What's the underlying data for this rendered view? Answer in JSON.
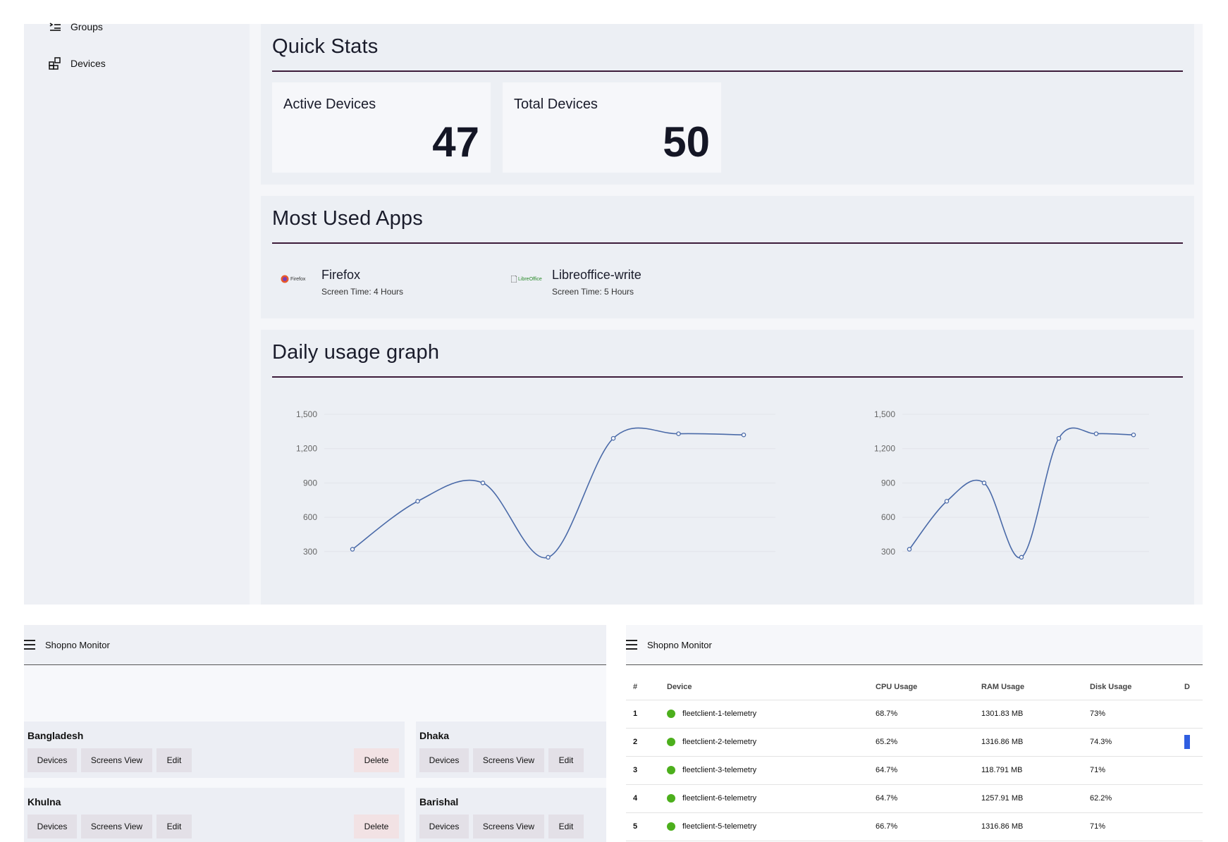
{
  "sidebar": {
    "items": [
      {
        "label": "Groups",
        "icon": "list-icon"
      },
      {
        "label": "Devices",
        "icon": "devices-icon"
      }
    ]
  },
  "quick_stats": {
    "title": "Quick Stats",
    "cards": [
      {
        "label": "Active Devices",
        "value": "47"
      },
      {
        "label": "Total Devices",
        "value": "50"
      }
    ]
  },
  "most_used_apps": {
    "title": "Most Used Apps",
    "apps": [
      {
        "name": "Firefox",
        "screen_time": "Screen Time: 4 Hours",
        "logo_text": "Firefox"
      },
      {
        "name": "Libreoffice-write",
        "screen_time": "Screen Time: 5 Hours",
        "logo_text": "LibreOffice"
      }
    ]
  },
  "daily_usage": {
    "title": "Daily usage graph"
  },
  "chart_data": [
    {
      "type": "line",
      "x": [
        1,
        2,
        3,
        4,
        5,
        6,
        7
      ],
      "values": [
        320,
        740,
        900,
        250,
        1290,
        1330,
        1320
      ],
      "yticks": [
        "300",
        "600",
        "900",
        "1,200",
        "1,500"
      ],
      "ylim": [
        250,
        1550
      ],
      "grid": true,
      "color": "#4a6aa8"
    },
    {
      "type": "line",
      "x": [
        1,
        2,
        3,
        4,
        5,
        6,
        7
      ],
      "values": [
        320,
        740,
        900,
        250,
        1290,
        1330,
        1320
      ],
      "yticks": [
        "300",
        "600",
        "900",
        "1,200",
        "1,500"
      ],
      "ylim": [
        250,
        1550
      ],
      "grid": true,
      "color": "#4a6aa8"
    }
  ],
  "groups_panel": {
    "app_title": "Shopno Monitor",
    "groups": [
      {
        "name": "Bangladesh",
        "buttons": [
          "Devices",
          "Screens View",
          "Edit"
        ],
        "delete": "Delete"
      },
      {
        "name": "Dhaka",
        "buttons": [
          "Devices",
          "Screens View",
          "Edit"
        ]
      },
      {
        "name": "Khulna",
        "buttons": [
          "Devices",
          "Screens View",
          "Edit"
        ],
        "delete": "Delete"
      },
      {
        "name": "Barishal",
        "buttons": [
          "Devices",
          "Screens View",
          "Edit"
        ]
      }
    ]
  },
  "devices_panel": {
    "app_title": "Shopno Monitor",
    "columns": [
      "#",
      "Device",
      "CPU Usage",
      "RAM Usage",
      "Disk Usage",
      "D"
    ],
    "rows": [
      {
        "n": "1",
        "device": "fleetclient-1-telemetry",
        "cpu": "68.7%",
        "ram": "1301.83 MB",
        "disk": "73%"
      },
      {
        "n": "2",
        "device": "fleetclient-2-telemetry",
        "cpu": "65.2%",
        "ram": "1316.86 MB",
        "disk": "74.3%"
      },
      {
        "n": "3",
        "device": "fleetclient-3-telemetry",
        "cpu": "64.7%",
        "ram": "118.791 MB",
        "disk": "71%"
      },
      {
        "n": "4",
        "device": "fleetclient-6-telemetry",
        "cpu": "64.7%",
        "ram": "1257.91 MB",
        "disk": "62.2%"
      },
      {
        "n": "5",
        "device": "fleetclient-5-telemetry",
        "cpu": "66.7%",
        "ram": "1316.86 MB",
        "disk": "71%"
      }
    ],
    "status_color": "#4caf1c"
  }
}
